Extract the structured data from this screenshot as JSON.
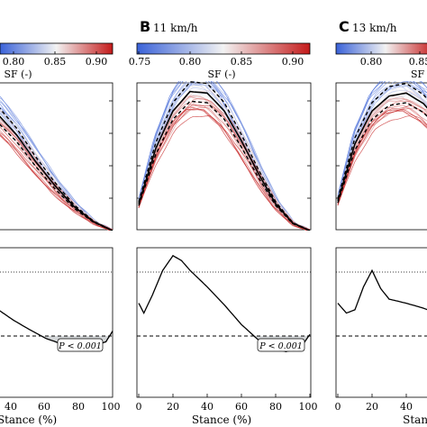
{
  "panels": [
    {
      "letter": "",
      "speed": "",
      "colorbar": {
        "ticks": [
          "0.80",
          "0.85",
          "0.90"
        ],
        "label": "SF (-)"
      },
      "pvalue": "P < 0.001",
      "xticks": [
        "40",
        "60",
        "80",
        "100"
      ],
      "xlabel": "Stance (%)"
    },
    {
      "letter": "B",
      "speed": "11 km/h",
      "colorbar": {
        "ticks": [
          "0.75",
          "0.80",
          "0.85",
          "0.90"
        ],
        "label": "SF (-)"
      },
      "pvalue": "P < 0.001",
      "xticks": [
        "0",
        "20",
        "40",
        "60",
        "80",
        "100"
      ],
      "xlabel": "Stance (%)"
    },
    {
      "letter": "C",
      "speed": "13 km/h",
      "colorbar": {
        "ticks": [
          "0.80",
          "0.85"
        ],
        "label": "SF ("
      },
      "pvalue": "",
      "xticks": [
        "0",
        "20",
        "40"
      ],
      "xlabel": "Stance"
    }
  ],
  "colors": {
    "cmap_low": "#3a62d8",
    "cmap_mid": "#f2f2f2",
    "cmap_high": "#c41a1a",
    "shade": "#d3d6d8"
  },
  "chart_data": [
    {
      "type": "line",
      "panel": "A",
      "description_x": "Stance (%)",
      "x": [
        0,
        10,
        20,
        30,
        40,
        50,
        60,
        70,
        80,
        90,
        100
      ],
      "series": [
        {
          "name": "",
          "values": [
            0.1,
            0.62,
            0.8,
            0.85,
            0.78,
            0.64,
            0.46,
            0.3,
            0.16,
            0.06,
            0.0
          ]
        }
      ],
      "xlim": [
        0,
        100
      ],
      "colorbar_range": [
        0.75,
        0.9
      ]
    },
    {
      "type": "line",
      "panel": "A-lower",
      "x": [
        0,
        10,
        20,
        30,
        40,
        50,
        60,
        70,
        80,
        90,
        96,
        100
      ],
      "series": [
        {
          "name": "",
          "values": [
            0.75,
            0.66,
            0.48,
            0.34,
            0.2,
            0.08,
            -0.03,
            -0.1,
            -0.11,
            -0.11,
            -0.07,
            0.06
          ]
        }
      ],
      "xlim": [
        0,
        100
      ],
      "upper_threshold": 0.78,
      "lower_threshold": 0.0
    },
    {
      "type": "line",
      "panel": "B",
      "x": [
        0,
        10,
        20,
        30,
        40,
        50,
        60,
        70,
        80,
        90,
        100
      ],
      "series": [
        {
          "name": "",
          "values": [
            0.18,
            0.55,
            0.8,
            0.93,
            0.92,
            0.8,
            0.6,
            0.38,
            0.18,
            0.05,
            0.0
          ]
        }
      ],
      "xlim": [
        0,
        100
      ],
      "colorbar_range": [
        0.75,
        0.9
      ]
    },
    {
      "type": "line",
      "panel": "B-lower",
      "x": [
        0,
        3,
        8,
        14,
        20,
        25,
        30,
        40,
        50,
        60,
        70,
        80,
        86,
        92,
        96,
        100
      ],
      "series": [
        {
          "name": "",
          "values": [
            0.4,
            0.28,
            0.5,
            0.8,
            0.98,
            0.92,
            0.8,
            0.6,
            0.38,
            0.14,
            -0.05,
            -0.16,
            -0.19,
            -0.16,
            -0.1,
            0.02
          ]
        }
      ],
      "xlim": [
        0,
        100
      ],
      "upper_threshold": 0.78,
      "lower_threshold": 0.0
    },
    {
      "type": "line",
      "panel": "C",
      "x": [
        0,
        10,
        20,
        30,
        40,
        50,
        60
      ],
      "series": [
        {
          "name": "",
          "values": [
            0.2,
            0.58,
            0.8,
            0.9,
            0.92,
            0.85,
            0.72
          ]
        }
      ],
      "xlim": [
        0,
        100
      ],
      "colorbar_range": [
        0.75,
        0.9
      ]
    },
    {
      "type": "line",
      "panel": "C-lower",
      "x": [
        0,
        5,
        10,
        15,
        20,
        25,
        30,
        40,
        50,
        55
      ],
      "series": [
        {
          "name": "",
          "values": [
            0.4,
            0.28,
            0.32,
            0.6,
            0.8,
            0.58,
            0.45,
            0.4,
            0.34,
            0.3
          ]
        }
      ],
      "xlim": [
        0,
        100
      ],
      "upper_threshold": 0.78,
      "lower_threshold": 0.0
    }
  ]
}
